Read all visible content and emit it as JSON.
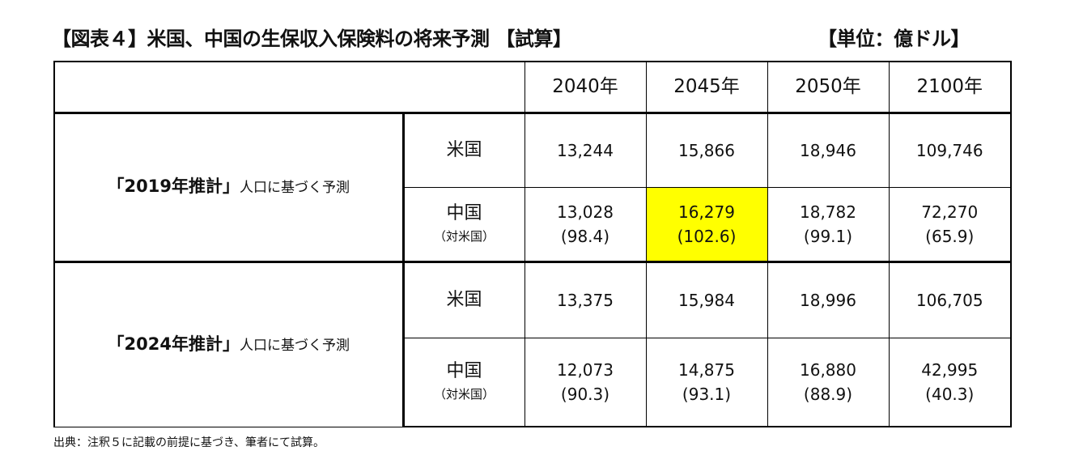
{
  "title": "【図表４】米国、中国の生保収入保険料の将来予測 【試算】",
  "unit": "【単位：億ドル】",
  "columns": [
    "2040年",
    "2045年",
    "2050年",
    "2100年"
  ],
  "groups": [
    {
      "label_bold": "「2019年推計」",
      "label_rest": "人口に基づく予測",
      "us": {
        "label": "米国",
        "values": [
          "13,244",
          "15,866",
          "18,946",
          "109,746"
        ]
      },
      "cn": {
        "label": "中国",
        "sub": "（対米国）",
        "values": [
          "13,028",
          "16,279",
          "18,782",
          "72,270"
        ],
        "ratios": [
          "(98.4)",
          "(102.6)",
          "(99.1)",
          "(65.9)"
        ]
      }
    },
    {
      "label_bold": "「2024年推計」",
      "label_rest": "人口に基づく予測",
      "us": {
        "label": "米国",
        "values": [
          "13,375",
          "15,984",
          "18,996",
          "106,705"
        ]
      },
      "cn": {
        "label": "中国",
        "sub": "（対米国）",
        "values": [
          "12,073",
          "14,875",
          "16,880",
          "42,995"
        ],
        "ratios": [
          "(90.3)",
          "(93.1)",
          "(88.9)",
          "(40.3)"
        ]
      }
    }
  ],
  "highlight_color": "#ffff00",
  "note": "出典：注釈５に記載の前提に基づき、筆者にて試算。"
}
